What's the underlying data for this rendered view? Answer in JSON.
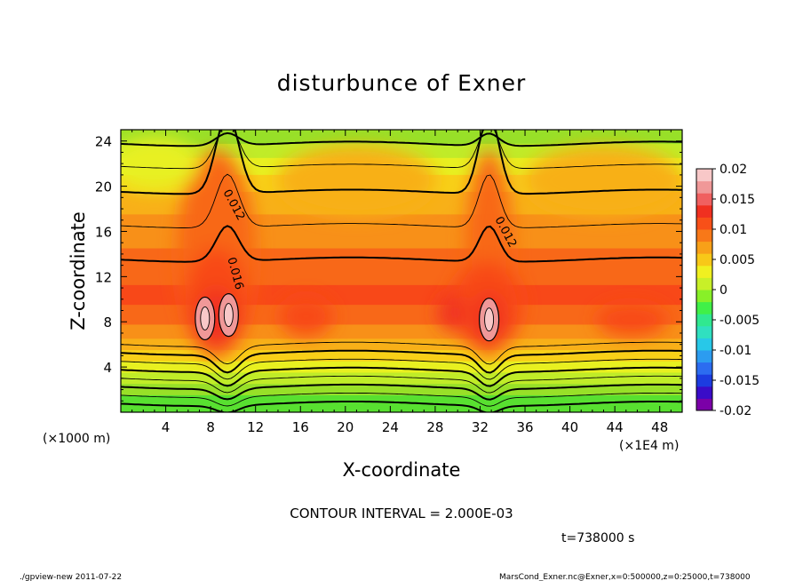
{
  "chart_data": {
    "type": "heatmap",
    "title": "disturbunce of Exner",
    "xlabel": "X-coordinate",
    "ylabel": "Z-coordinate",
    "x_unit_left": "(×1000 m)",
    "x_unit_right": "(×1E4 m)",
    "xlim": [
      0,
      50
    ],
    "ylim": [
      0,
      25
    ],
    "x_ticks": [
      4,
      8,
      12,
      16,
      20,
      24,
      28,
      32,
      36,
      40,
      44,
      48
    ],
    "y_ticks": [
      4,
      8,
      12,
      16,
      20,
      24
    ],
    "colorbar": {
      "min": -0.02,
      "max": 0.02,
      "tick_labels": [
        "0.02",
        "0.015",
        "0.01",
        "0.005",
        "0",
        "-0.005",
        "-0.01",
        "-0.015",
        "-0.02"
      ],
      "colors": [
        "#7b00a8",
        "#3a0cc8",
        "#1c3ce0",
        "#2c6cf0",
        "#2c9cf0",
        "#28c8e8",
        "#30e0c0",
        "#30e890",
        "#40f048",
        "#88f028",
        "#c8f028",
        "#f0f020",
        "#f8c818",
        "#f8a018",
        "#f87818",
        "#f85018",
        "#f03020",
        "#f06060",
        "#f09898",
        "#f8c8c8"
      ]
    },
    "contour_labels": [
      {
        "text": "0.012",
        "x": 9.8,
        "z": 18.2,
        "angle": 62
      },
      {
        "text": "0.016",
        "x": 9.9,
        "z": 12.2,
        "angle": 75
      },
      {
        "text": "0.012",
        "x": 34.0,
        "z": 15.8,
        "angle": 62
      }
    ],
    "maxima": [
      {
        "x": 7.5,
        "z": 8.3
      },
      {
        "x": 9.6,
        "z": 8.6
      },
      {
        "x": 32.8,
        "z": 8.2
      }
    ],
    "contour_interval_text": "CONTOUR INTERVAL = 2.000E-03"
  },
  "time_text": "t=738000 s",
  "footer": {
    "left": "./gpview-new  2011-07-22",
    "right": "MarsCond_Exner.nc@Exner,x=0:500000,z=0:25000,t=738000"
  }
}
